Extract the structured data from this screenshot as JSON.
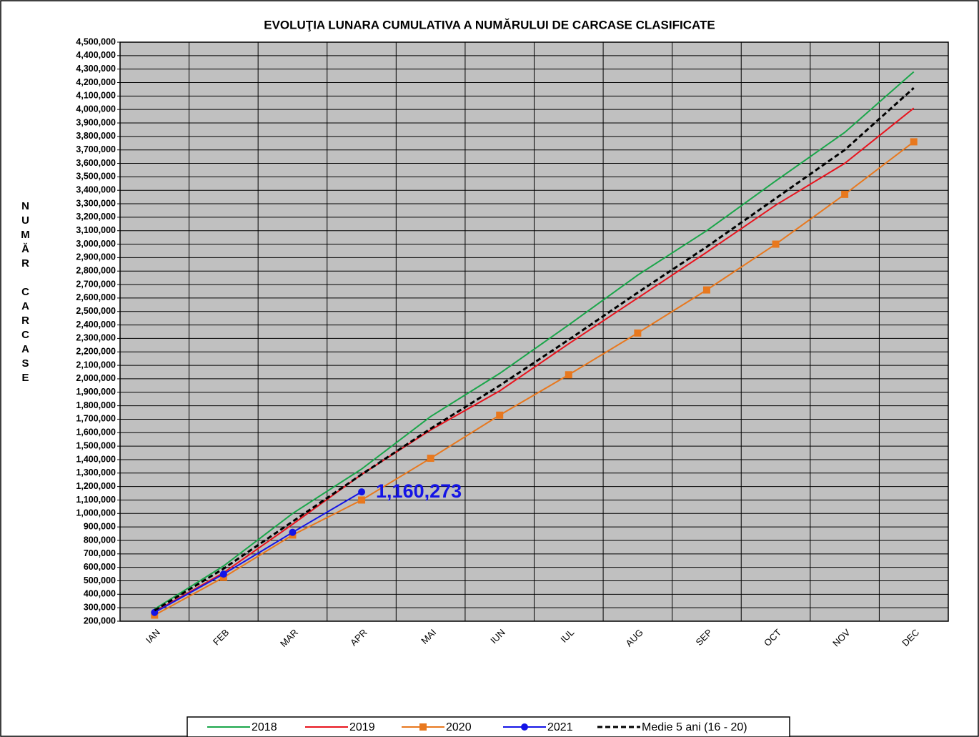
{
  "chart_data": {
    "type": "line",
    "title": "EVOLUŢIA LUNARA  CUMULATIVA A NUMĂRULUI DE CARCASE CLASIFICATE",
    "y_label": "NUMĂR CARCASE",
    "categories": [
      "IAN",
      "FEB",
      "MAR",
      "APR",
      "MAI",
      "IUN",
      "IUL",
      "AUG",
      "SEP",
      "OCT",
      "NOV",
      "DEC"
    ],
    "series": [
      {
        "name": "2018",
        "color": "#1aa64a",
        "values": [
          290000,
          610000,
          1000000,
          1330000,
          1720000,
          2040000,
          2400000,
          2770000,
          3100000,
          3470000,
          3830000,
          4280000
        ]
      },
      {
        "name": "2019",
        "color": "#e8141e",
        "values": [
          270000,
          560000,
          920000,
          1290000,
          1620000,
          1910000,
          2260000,
          2600000,
          2940000,
          3290000,
          3600000,
          4010000
        ]
      },
      {
        "name": "2020",
        "color": "#e8781e",
        "marker": "square",
        "values": [
          245000,
          525000,
          840000,
          1100000,
          1410000,
          1730000,
          2030000,
          2340000,
          2660000,
          3000000,
          3370000,
          3760000
        ]
      },
      {
        "name": "2021",
        "color": "#1414e6",
        "marker": "circle",
        "values": [
          265000,
          550000,
          860000,
          1160273,
          null,
          null,
          null,
          null,
          null,
          null,
          null,
          null
        ],
        "value_labels": [
          null,
          null,
          null,
          "1,160,273",
          null,
          null,
          null,
          null,
          null,
          null,
          null,
          null
        ]
      },
      {
        "name": "Medie 5 ani (16 - 20)",
        "color": "#000000",
        "dashed": true,
        "values": [
          280000,
          590000,
          940000,
          1290000,
          1630000,
          1950000,
          2290000,
          2640000,
          2980000,
          3340000,
          3700000,
          4160000
        ]
      }
    ],
    "ylim": [
      200000,
      4500000
    ],
    "yticks": [
      {
        "value": 200000,
        "label": "200,000"
      },
      {
        "value": 300000,
        "label": "300,000"
      },
      {
        "value": 400000,
        "label": "400,000"
      },
      {
        "value": 500000,
        "label": "500,000"
      },
      {
        "value": 600000,
        "label": "600,000"
      },
      {
        "value": 700000,
        "label": "700,000"
      },
      {
        "value": 800000,
        "label": "800,000"
      },
      {
        "value": 900000,
        "label": "900,000"
      },
      {
        "value": 1000000,
        "label": "1,000,000"
      },
      {
        "value": 1100000,
        "label": "1,100,000"
      },
      {
        "value": 1200000,
        "label": "1,200,000"
      },
      {
        "value": 1300000,
        "label": "1,300,000"
      },
      {
        "value": 1400000,
        "label": "1,400,000"
      },
      {
        "value": 1500000,
        "label": "1,500,000"
      },
      {
        "value": 1600000,
        "label": "1,600,000"
      },
      {
        "value": 1700000,
        "label": "1,700,000"
      },
      {
        "value": 1800000,
        "label": "1,800,000"
      },
      {
        "value": 1900000,
        "label": "1,900,000"
      },
      {
        "value": 2000000,
        "label": "2,000,000"
      },
      {
        "value": 2100000,
        "label": "2,100,000"
      },
      {
        "value": 2200000,
        "label": "2,200,000"
      },
      {
        "value": 2300000,
        "label": "2,300,000"
      },
      {
        "value": 2400000,
        "label": "2,400,000"
      },
      {
        "value": 2500000,
        "label": "2,500,000"
      },
      {
        "value": 2600000,
        "label": "2,600,000"
      },
      {
        "value": 2700000,
        "label": "2,700,000"
      },
      {
        "value": 2800000,
        "label": "2,800,000"
      },
      {
        "value": 2900000,
        "label": "2,900,000"
      },
      {
        "value": 3000000,
        "label": "3,000,000"
      },
      {
        "value": 3100000,
        "label": "3,100,000"
      },
      {
        "value": 3200000,
        "label": "3,200,000"
      },
      {
        "value": 3300000,
        "label": "3,300,000"
      },
      {
        "value": 3400000,
        "label": "3,400,000"
      },
      {
        "value": 3500000,
        "label": "3,500,000"
      },
      {
        "value": 3600000,
        "label": "3,600,000"
      },
      {
        "value": 3700000,
        "label": "3,700,000"
      },
      {
        "value": 3800000,
        "label": "3,800,000"
      },
      {
        "value": 3900000,
        "label": "3,900,000"
      },
      {
        "value": 4000000,
        "label": "4,000,000"
      },
      {
        "value": 4100000,
        "label": "4,100,000"
      },
      {
        "value": 4200000,
        "label": "4,200,000"
      },
      {
        "value": 4300000,
        "label": "4,300,000"
      },
      {
        "value": 4400000,
        "label": "4,400,000"
      },
      {
        "value": 4500000,
        "label": "4,500,000"
      }
    ],
    "grid": true,
    "legend": "bottom"
  }
}
